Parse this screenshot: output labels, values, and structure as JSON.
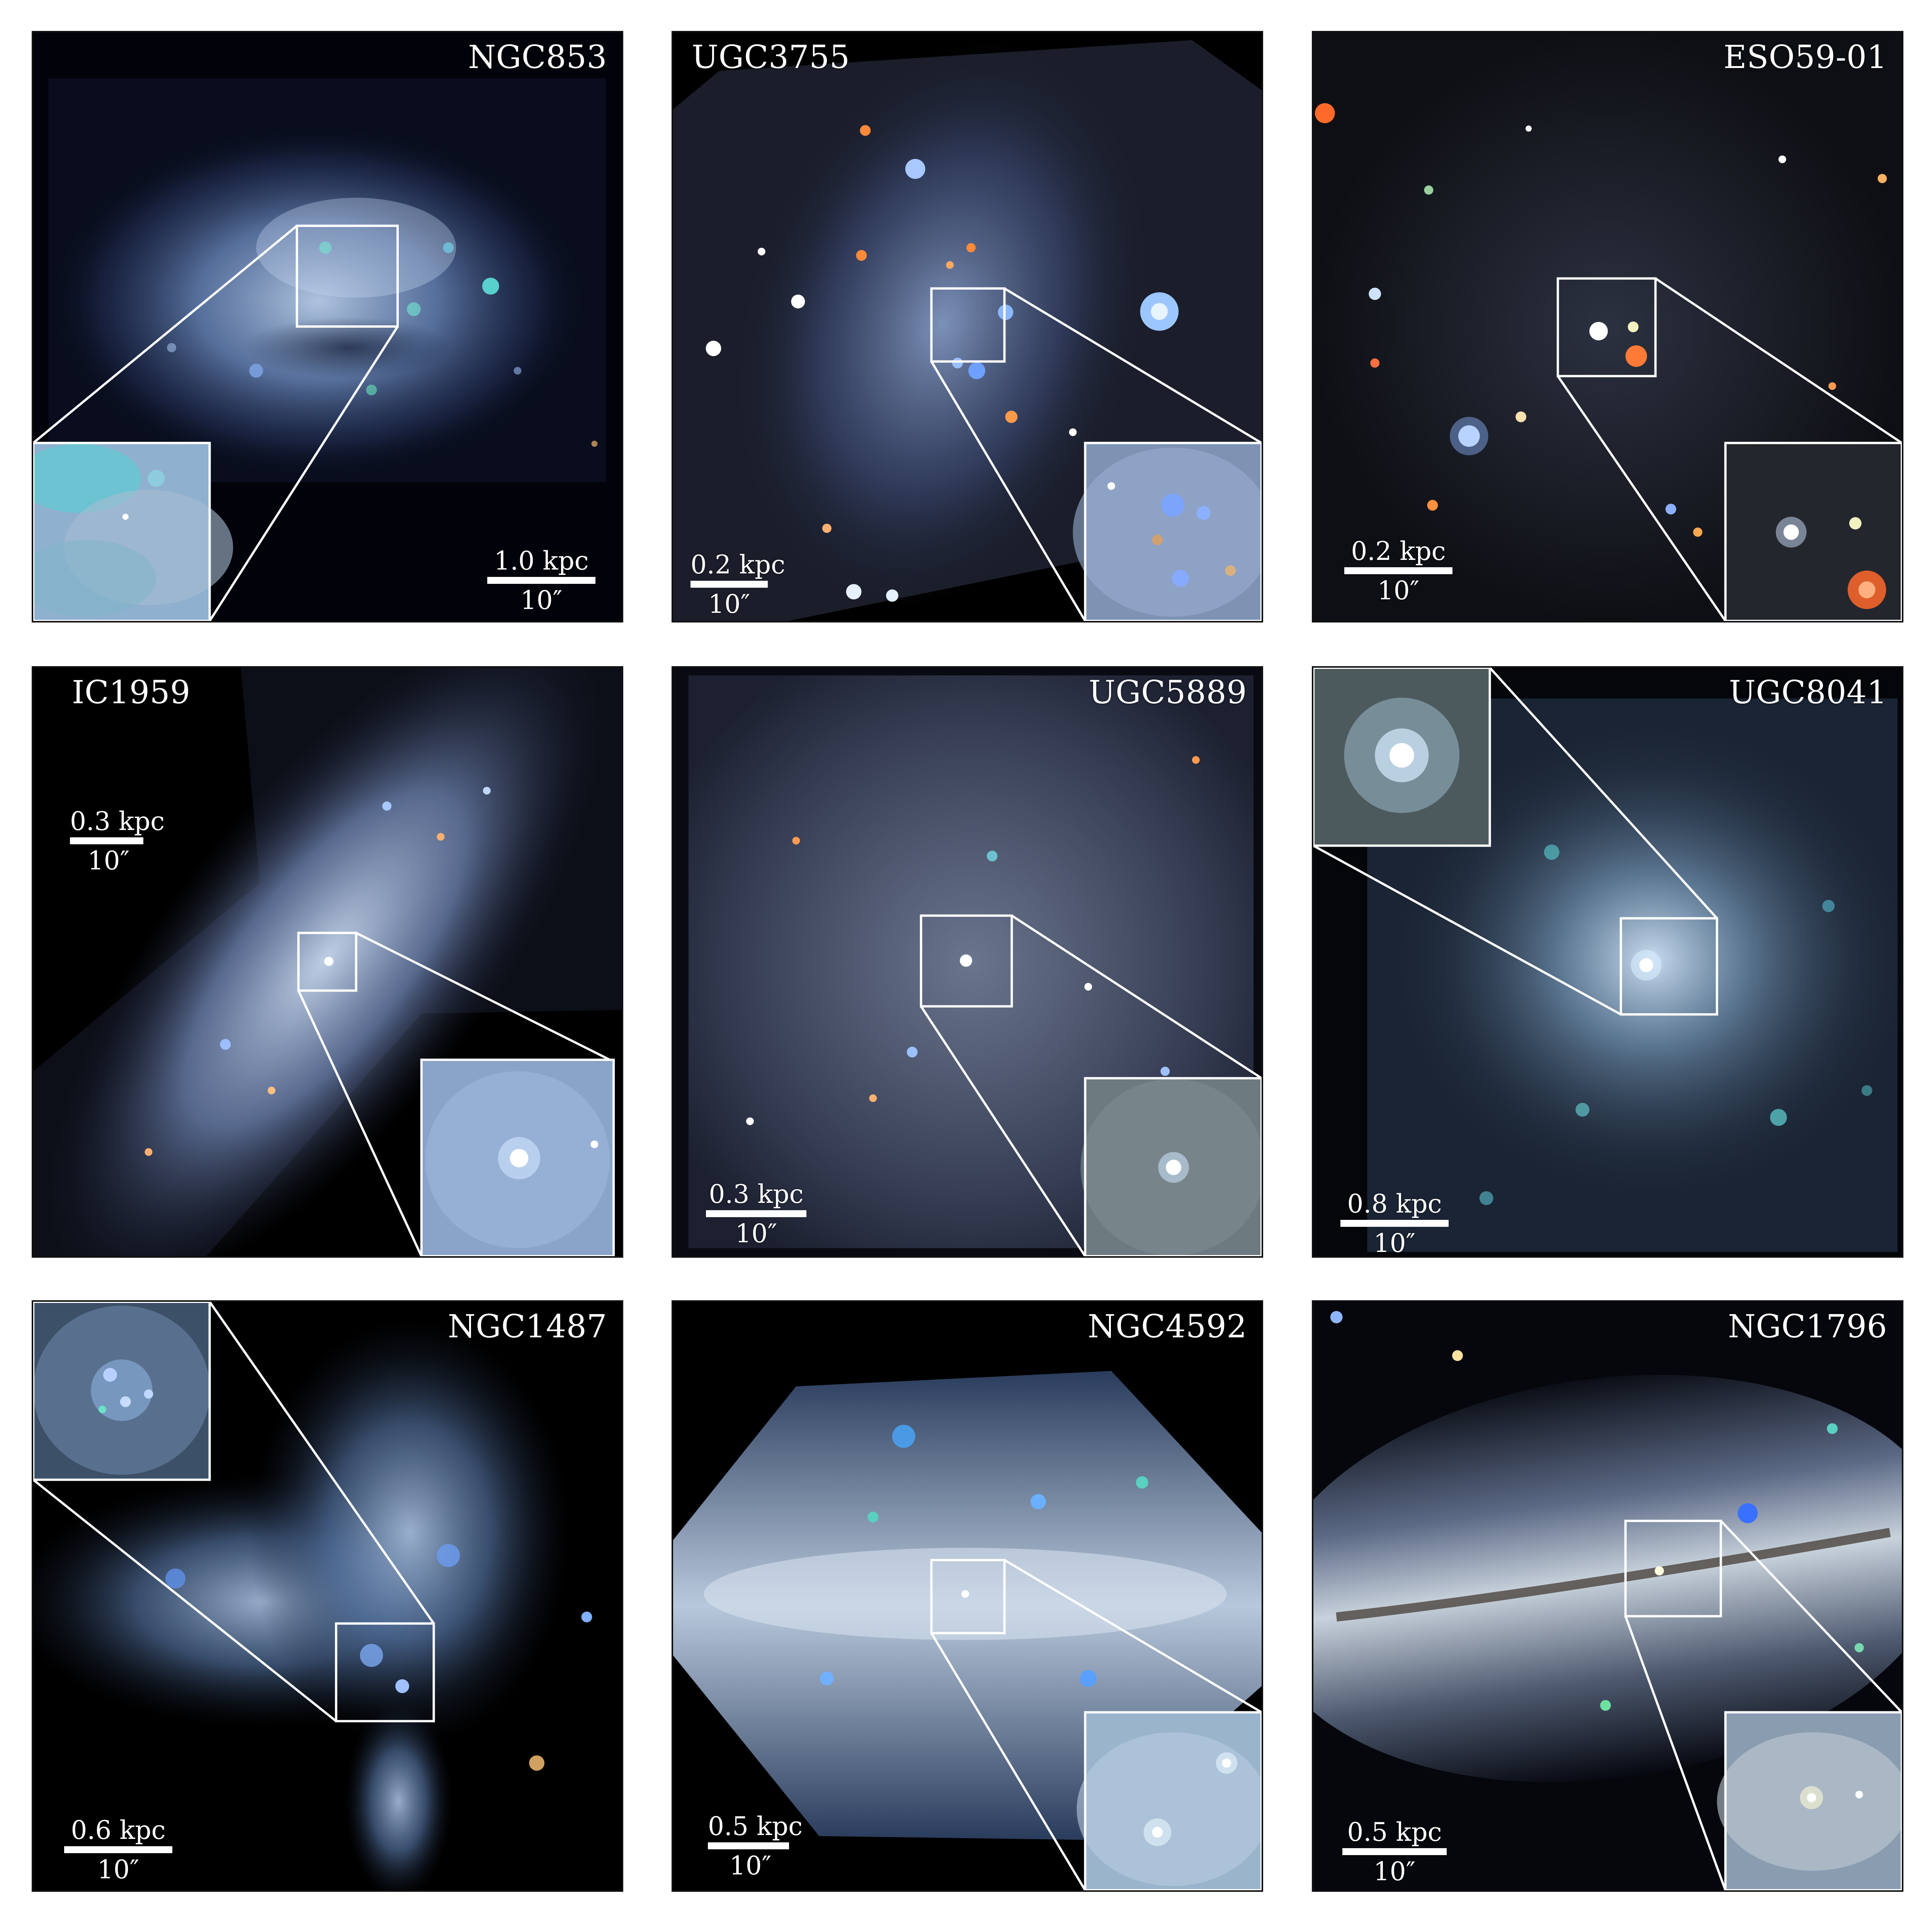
{
  "panels": [
    {
      "id": "ngc853",
      "name": "NGC853",
      "scale_kpc": "1.0 kpc",
      "scale_arcsec": "10″"
    },
    {
      "id": "ugc3755",
      "name": "UGC3755",
      "scale_kpc": "0.2 kpc",
      "scale_arcsec": "10″"
    },
    {
      "id": "eso5901",
      "name": "ESO59-01",
      "scale_kpc": "0.2 kpc",
      "scale_arcsec": "10″"
    },
    {
      "id": "ic1959",
      "name": "IC1959",
      "scale_kpc": "0.3 kpc",
      "scale_arcsec": "10″"
    },
    {
      "id": "ugc5889",
      "name": "UGC5889",
      "scale_kpc": "0.3 kpc",
      "scale_arcsec": "10″"
    },
    {
      "id": "ugc8041",
      "name": "UGC8041",
      "scale_kpc": "0.8 kpc",
      "scale_arcsec": "10″"
    },
    {
      "id": "ngc1487",
      "name": "NGC1487",
      "scale_kpc": "0.6 kpc",
      "scale_arcsec": "10″"
    },
    {
      "id": "ngc4592",
      "name": "NGC4592",
      "scale_kpc": "0.5 kpc",
      "scale_arcsec": "10″"
    },
    {
      "id": "ngc1796",
      "name": "NGC1796",
      "scale_kpc": "0.5 kpc",
      "scale_arcsec": "10″"
    }
  ],
  "colors": {
    "background": "#000000",
    "galaxy_blue": "#8fb4e6",
    "zoom_box": "#ffffff",
    "panel_border": "#111111"
  }
}
